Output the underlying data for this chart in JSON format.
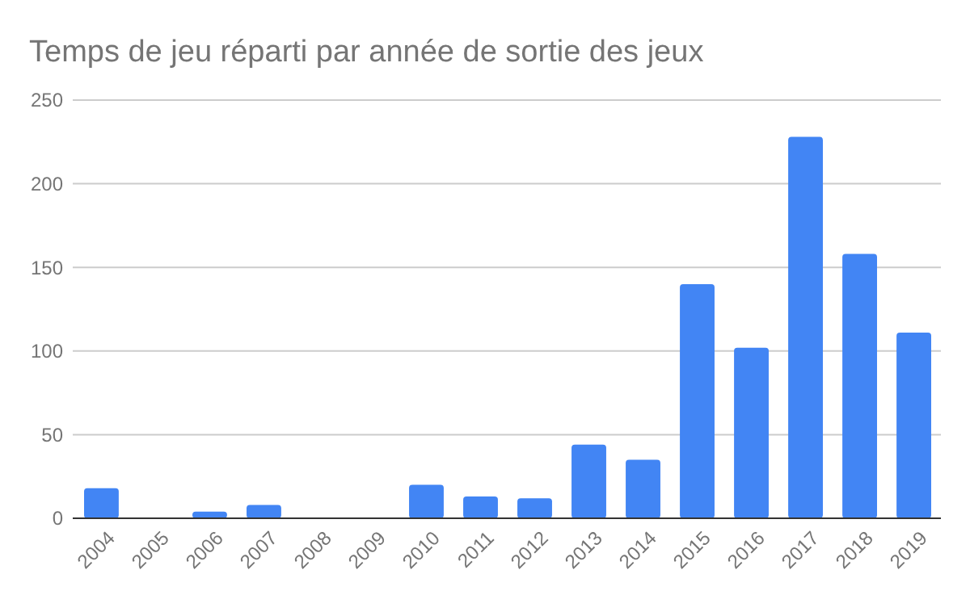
{
  "chart_data": {
    "type": "bar",
    "title": "Temps de jeu réparti par année de sortie des jeux",
    "categories": [
      "2004",
      "2005",
      "2006",
      "2007",
      "2008",
      "2009",
      "2010",
      "2011",
      "2012",
      "2013",
      "2014",
      "2015",
      "2016",
      "2017",
      "2018",
      "2019"
    ],
    "values": [
      18,
      0,
      4,
      8,
      0,
      0,
      20,
      13,
      12,
      44,
      35,
      140,
      102,
      228,
      158,
      111
    ],
    "color": "#4285f4",
    "ylim": [
      0,
      250
    ],
    "yticks": [
      0,
      50,
      100,
      150,
      200,
      250
    ],
    "grid": "y"
  }
}
